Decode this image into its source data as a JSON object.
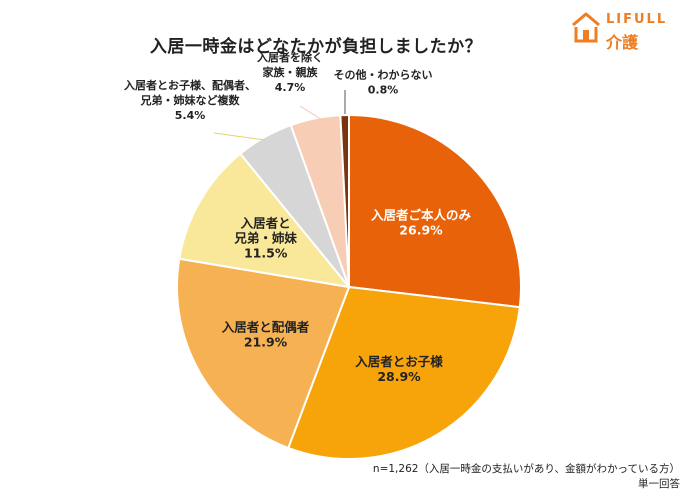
{
  "title": "入居一時金はどなたかが負担しましたか？",
  "logo": {
    "brand": "LIFULL",
    "sub": "介護",
    "color": "#ef7d22"
  },
  "footnote": {
    "line1": "n=1,262（入居一時金の支払いがあり、金額がわかっている方）",
    "line2": "単一回答"
  },
  "chart_data": {
    "type": "pie",
    "start": "12 o'clock",
    "direction": "clockwise",
    "slices": [
      {
        "label": "入居者ご本人のみ",
        "value": 26.9,
        "value_label": "26.9%",
        "color": "#e8620a",
        "text_color": "#ffffff",
        "label_position": "inside"
      },
      {
        "label": "入居者とお子様",
        "value": 28.9,
        "value_label": "28.9%",
        "color": "#f7a30a",
        "text_color": "#222222",
        "label_position": "inside"
      },
      {
        "label": "入居者と配偶者",
        "value": 21.9,
        "value_label": "21.9%",
        "color": "#f6b252",
        "text_color": "#222222",
        "label_position": "inside"
      },
      {
        "label": "入居者と\n兄弟・姉妹",
        "value": 11.5,
        "value_label": "11.5%",
        "color": "#fae89a",
        "text_color": "#222222",
        "label_position": "inside"
      },
      {
        "label": "入居者とお子様、配偶者、\n兄弟・姉妹など複数",
        "value": 5.4,
        "value_label": "5.4%",
        "color": "#d6d6d6",
        "text_color": "#222222",
        "label_position": "outside"
      },
      {
        "label": "入居者を除く\n家族・親族",
        "value": 4.7,
        "value_label": "4.7%",
        "color": "#f7cdb6",
        "text_color": "#222222",
        "label_position": "outside"
      },
      {
        "label": "その他・わからない",
        "value": 0.8,
        "value_label": "0.8%",
        "color": "#7a3510",
        "text_color": "#222222",
        "label_position": "outside"
      }
    ]
  }
}
